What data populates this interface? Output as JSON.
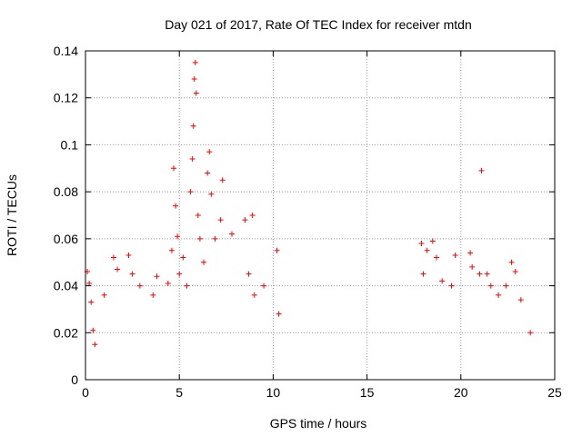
{
  "chart_data": {
    "type": "scatter",
    "title": "Day 021 of 2017, Rate Of TEC Index for receiver mtdn",
    "xlabel": "GPS time / hours",
    "ylabel": "ROTI / TECUs",
    "xlim": [
      0,
      25
    ],
    "ylim": [
      0,
      0.14
    ],
    "xticks": [
      0,
      5,
      10,
      15,
      20,
      25
    ],
    "yticks": [
      0,
      0.02,
      0.04,
      0.06,
      0.08,
      0.1,
      0.12,
      0.14
    ],
    "xtick_labels": [
      "0",
      "5",
      "10",
      "15",
      "20",
      "25"
    ],
    "ytick_labels": [
      "0",
      "0.02",
      "0.04",
      "0.06",
      "0.08",
      "0.1",
      "0.12",
      "0.14"
    ],
    "grid": true,
    "marker": "+",
    "color": "#ff0000",
    "series": [
      {
        "values": [
          [
            0.1,
            0.046
          ],
          [
            0.2,
            0.041
          ],
          [
            0.3,
            0.033
          ],
          [
            0.4,
            0.021
          ],
          [
            0.5,
            0.015
          ],
          [
            1.0,
            0.036
          ],
          [
            1.5,
            0.052
          ],
          [
            1.7,
            0.047
          ],
          [
            2.3,
            0.053
          ],
          [
            2.5,
            0.045
          ],
          [
            2.9,
            0.04
          ],
          [
            3.6,
            0.036
          ],
          [
            3.8,
            0.044
          ],
          [
            4.4,
            0.041
          ],
          [
            4.6,
            0.055
          ],
          [
            4.7,
            0.09
          ],
          [
            4.8,
            0.074
          ],
          [
            4.9,
            0.061
          ],
          [
            5.0,
            0.045
          ],
          [
            5.2,
            0.052
          ],
          [
            5.4,
            0.04
          ],
          [
            5.6,
            0.08
          ],
          [
            5.7,
            0.094
          ],
          [
            5.75,
            0.108
          ],
          [
            5.8,
            0.128
          ],
          [
            5.85,
            0.135
          ],
          [
            5.9,
            0.122
          ],
          [
            6.0,
            0.07
          ],
          [
            6.1,
            0.06
          ],
          [
            6.3,
            0.05
          ],
          [
            6.5,
            0.088
          ],
          [
            6.6,
            0.097
          ],
          [
            6.7,
            0.079
          ],
          [
            6.9,
            0.06
          ],
          [
            7.3,
            0.085
          ],
          [
            7.2,
            0.068
          ],
          [
            7.8,
            0.062
          ],
          [
            8.5,
            0.068
          ],
          [
            8.9,
            0.07
          ],
          [
            8.7,
            0.045
          ],
          [
            9.0,
            0.036
          ],
          [
            9.5,
            0.04
          ],
          [
            10.2,
            0.055
          ],
          [
            10.3,
            0.028
          ],
          [
            17.9,
            0.058
          ],
          [
            18.0,
            0.045
          ],
          [
            18.2,
            0.055
          ],
          [
            18.5,
            0.059
          ],
          [
            18.7,
            0.052
          ],
          [
            19.0,
            0.042
          ],
          [
            19.5,
            0.04
          ],
          [
            19.7,
            0.053
          ],
          [
            20.5,
            0.054
          ],
          [
            20.6,
            0.048
          ],
          [
            21.0,
            0.045
          ],
          [
            21.1,
            0.089
          ],
          [
            21.4,
            0.045
          ],
          [
            21.6,
            0.04
          ],
          [
            22.0,
            0.036
          ],
          [
            22.4,
            0.04
          ],
          [
            22.7,
            0.05
          ],
          [
            22.9,
            0.046
          ],
          [
            23.2,
            0.034
          ],
          [
            23.7,
            0.02
          ]
        ]
      }
    ]
  }
}
